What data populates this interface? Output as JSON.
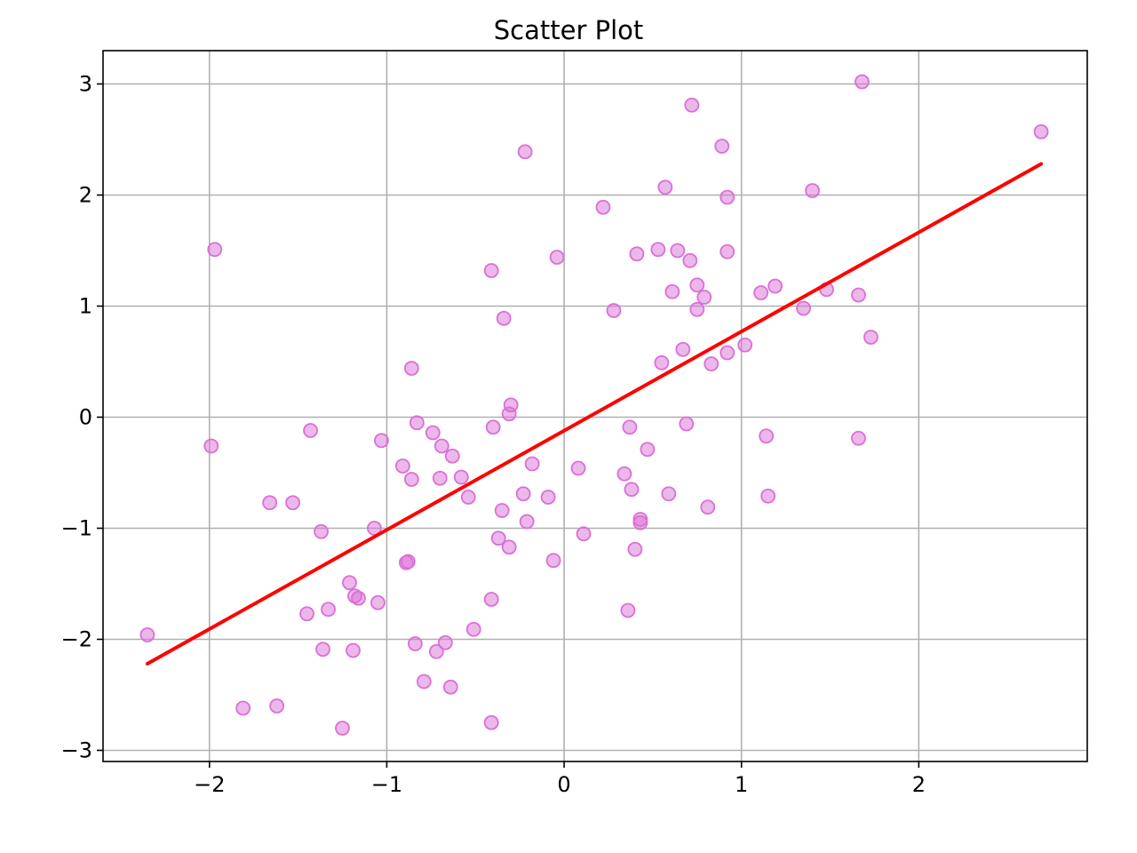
{
  "chart_data": {
    "type": "scatter",
    "title": "Scatter Plot",
    "xlabel": "",
    "ylabel": "",
    "xlim": [
      -2.6,
      2.95
    ],
    "ylim": [
      -3.1,
      3.3
    ],
    "xticks": [
      -2,
      -1,
      0,
      1,
      2
    ],
    "yticks": [
      -3,
      -2,
      -1,
      0,
      1,
      2,
      3
    ],
    "grid": true,
    "colors": {
      "points": "#da70d6",
      "fit_line": "#ff0000",
      "grid": "#b0b0b0",
      "axes": "#000000"
    },
    "series": [
      {
        "type": "scatter",
        "points": [
          [
            -2.35,
            -1.96
          ],
          [
            -1.99,
            -0.26
          ],
          [
            -1.97,
            1.51
          ],
          [
            -1.81,
            -2.62
          ],
          [
            -1.66,
            -0.77
          ],
          [
            -1.62,
            -2.6
          ],
          [
            -1.53,
            -0.77
          ],
          [
            -1.45,
            -1.77
          ],
          [
            -1.43,
            -0.12
          ],
          [
            -1.37,
            -1.03
          ],
          [
            -1.36,
            -2.09
          ],
          [
            -1.33,
            -1.73
          ],
          [
            -1.25,
            -2.8
          ],
          [
            -1.21,
            -1.49
          ],
          [
            -1.19,
            -2.1
          ],
          [
            -1.18,
            -1.61
          ],
          [
            -1.16,
            -1.63
          ],
          [
            -1.07,
            -1.0
          ],
          [
            -1.05,
            -1.67
          ],
          [
            -1.03,
            -0.21
          ],
          [
            -0.91,
            -0.44
          ],
          [
            -0.88,
            -1.3
          ],
          [
            -0.89,
            -1.31
          ],
          [
            -0.86,
            0.44
          ],
          [
            -0.86,
            -0.56
          ],
          [
            -0.84,
            -2.04
          ],
          [
            -0.83,
            -0.05
          ],
          [
            -0.79,
            -2.38
          ],
          [
            -0.74,
            -0.14
          ],
          [
            -0.72,
            -2.11
          ],
          [
            -0.7,
            -0.55
          ],
          [
            -0.69,
            -0.26
          ],
          [
            -0.67,
            -2.03
          ],
          [
            -0.63,
            -0.35
          ],
          [
            -0.64,
            -2.43
          ],
          [
            -0.58,
            -0.54
          ],
          [
            -0.54,
            -0.72
          ],
          [
            -0.51,
            -1.91
          ],
          [
            -0.41,
            1.32
          ],
          [
            -0.41,
            -1.64
          ],
          [
            -0.4,
            -0.09
          ],
          [
            -0.41,
            -2.75
          ],
          [
            -0.37,
            -1.09
          ],
          [
            -0.35,
            -0.84
          ],
          [
            -0.34,
            0.89
          ],
          [
            -0.31,
            0.03
          ],
          [
            -0.3,
            0.11
          ],
          [
            -0.31,
            -1.17
          ],
          [
            -0.23,
            -0.69
          ],
          [
            -0.22,
            2.39
          ],
          [
            -0.21,
            -0.94
          ],
          [
            -0.18,
            -0.42
          ],
          [
            -0.09,
            -0.72
          ],
          [
            -0.06,
            -1.29
          ],
          [
            -0.04,
            1.44
          ],
          [
            0.08,
            -0.46
          ],
          [
            0.11,
            -1.05
          ],
          [
            0.22,
            1.89
          ],
          [
            0.28,
            0.96
          ],
          [
            0.34,
            -0.51
          ],
          [
            0.36,
            -1.74
          ],
          [
            0.37,
            -0.09
          ],
          [
            0.38,
            -0.65
          ],
          [
            0.4,
            -1.19
          ],
          [
            0.41,
            1.47
          ],
          [
            0.43,
            -0.95
          ],
          [
            0.43,
            -0.92
          ],
          [
            0.47,
            -0.29
          ],
          [
            0.53,
            1.51
          ],
          [
            0.55,
            0.49
          ],
          [
            0.57,
            2.07
          ],
          [
            0.59,
            -0.69
          ],
          [
            0.61,
            1.13
          ],
          [
            0.64,
            1.5
          ],
          [
            0.67,
            0.61
          ],
          [
            0.69,
            -0.06
          ],
          [
            0.71,
            1.41
          ],
          [
            0.72,
            2.81
          ],
          [
            0.75,
            0.97
          ],
          [
            0.75,
            1.19
          ],
          [
            0.79,
            1.08
          ],
          [
            0.81,
            -0.81
          ],
          [
            0.83,
            0.48
          ],
          [
            0.89,
            2.44
          ],
          [
            0.92,
            1.49
          ],
          [
            0.92,
            1.98
          ],
          [
            0.92,
            0.58
          ],
          [
            1.02,
            0.65
          ],
          [
            1.11,
            1.12
          ],
          [
            1.14,
            -0.17
          ],
          [
            1.15,
            -0.71
          ],
          [
            1.19,
            1.18
          ],
          [
            1.35,
            0.98
          ],
          [
            1.4,
            2.04
          ],
          [
            1.48,
            1.15
          ],
          [
            1.66,
            -0.19
          ],
          [
            1.66,
            1.1
          ],
          [
            1.68,
            3.02
          ],
          [
            1.73,
            0.72
          ],
          [
            2.69,
            2.57
          ]
        ]
      },
      {
        "type": "line",
        "points": [
          [
            -2.35,
            -2.22
          ],
          [
            2.69,
            2.28
          ]
        ]
      }
    ]
  }
}
